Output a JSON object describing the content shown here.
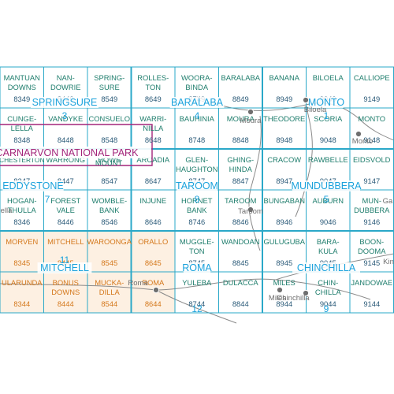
{
  "colors": {
    "grid_line": "#2aa8c8",
    "name_text": "#1e7d6c",
    "number_text": "#2a5a78",
    "region_text": "#1ba2dc",
    "orange_text": "#d4781c",
    "orange_fill": "#fdf0e2",
    "park_outline": "#a3257a",
    "park_text": "#a3257a",
    "road": "#8a8a8a",
    "town": "#6f6f6f"
  },
  "cells": [
    {
      "row": 0,
      "col": 0,
      "lines": [
        "MANTUAN",
        "DOWNS"
      ],
      "number": "8349"
    },
    {
      "row": 0,
      "col": 1,
      "lines": [
        "NAN-",
        "DOWRIE"
      ],
      "number": "8449"
    },
    {
      "row": 0,
      "col": 2,
      "lines": [
        "SPRING-",
        "SURE"
      ],
      "number": "8549"
    },
    {
      "row": 0,
      "col": 3,
      "lines": [
        "ROLLES-",
        "TON"
      ],
      "number": "8649"
    },
    {
      "row": 0,
      "col": 4,
      "lines": [
        "WOORA-",
        "BINDA"
      ],
      "number": "8749"
    },
    {
      "row": 0,
      "col": 5,
      "lines": [
        "BARALABA"
      ],
      "number": "8849"
    },
    {
      "row": 0,
      "col": 6,
      "lines": [
        "BANANA"
      ],
      "number": "8949"
    },
    {
      "row": 0,
      "col": 7,
      "lines": [
        "BILOELA"
      ],
      "number": "9049"
    },
    {
      "row": 0,
      "col": 8,
      "lines": [
        "CALLIOPE"
      ],
      "number": "9149"
    },
    {
      "row": 1,
      "col": 0,
      "lines": [
        "CUNGE-",
        "LELLA"
      ],
      "number": "8348"
    },
    {
      "row": 1,
      "col": 1,
      "lines": [
        "VANDYKE"
      ],
      "number": "8448"
    },
    {
      "row": 1,
      "col": 2,
      "lines": [
        "CONSUELO"
      ],
      "number": "8548"
    },
    {
      "row": 1,
      "col": 3,
      "lines": [
        "WARRI-",
        "NILLA"
      ],
      "number": "8648"
    },
    {
      "row": 1,
      "col": 4,
      "lines": [
        "BAUHINIA"
      ],
      "number": "8748"
    },
    {
      "row": 1,
      "col": 5,
      "lines": [
        "MOURA"
      ],
      "number": "8848"
    },
    {
      "row": 1,
      "col": 6,
      "lines": [
        "THEODORE"
      ],
      "number": "8948"
    },
    {
      "row": 1,
      "col": 7,
      "lines": [
        "SCORIA"
      ],
      "number": "9048"
    },
    {
      "row": 1,
      "col": 8,
      "lines": [
        "MONTO"
      ],
      "number": "9148"
    },
    {
      "row": 2,
      "col": 0,
      "lines": [
        "CHESTERTON"
      ],
      "number": "8347"
    },
    {
      "row": 2,
      "col": 1,
      "lines": [
        "WARRONG"
      ],
      "number": "8447"
    },
    {
      "row": 2,
      "col": 2,
      "lines": [
        "HOWE"
      ],
      "number": "8547"
    },
    {
      "row": 2,
      "col": 3,
      "lines": [
        "ARCADIA"
      ],
      "number": "8647"
    },
    {
      "row": 2,
      "col": 4,
      "lines": [
        "GLEN-",
        "HAUGHTON"
      ],
      "number": "8747"
    },
    {
      "row": 2,
      "col": 5,
      "lines": [
        "GHING-",
        "HINDA"
      ],
      "number": "8847"
    },
    {
      "row": 2,
      "col": 6,
      "lines": [
        "CRACOW"
      ],
      "number": "8947"
    },
    {
      "row": 2,
      "col": 7,
      "lines": [
        "RAWBELLE"
      ],
      "number": "9047"
    },
    {
      "row": 2,
      "col": 8,
      "lines": [
        "EIDSVOLD"
      ],
      "number": "9147"
    },
    {
      "row": 3,
      "col": 0,
      "lines": [
        "HOGAN-",
        "THULLA"
      ],
      "number": "8346"
    },
    {
      "row": 3,
      "col": 1,
      "lines": [
        "FOREST",
        "VALE"
      ],
      "number": "8446"
    },
    {
      "row": 3,
      "col": 2,
      "lines": [
        "WOMBLE-",
        "BANK"
      ],
      "number": "8546"
    },
    {
      "row": 3,
      "col": 3,
      "lines": [
        "INJUNE"
      ],
      "number": "8646"
    },
    {
      "row": 3,
      "col": 4,
      "lines": [
        "HORNET",
        "BANK"
      ],
      "number": "8746"
    },
    {
      "row": 3,
      "col": 5,
      "lines": [
        "TAROOM"
      ],
      "number": "8846"
    },
    {
      "row": 3,
      "col": 6,
      "lines": [
        "BUNGABAN"
      ],
      "number": "8946"
    },
    {
      "row": 3,
      "col": 7,
      "lines": [
        "AUBURN"
      ],
      "number": "9046"
    },
    {
      "row": 3,
      "col": 8,
      "lines": [
        "MUN-",
        "DUBBERA"
      ],
      "number": "9146"
    },
    {
      "row": 4,
      "col": 0,
      "lines": [
        "MORVEN"
      ],
      "number": "8345",
      "orange": true
    },
    {
      "row": 4,
      "col": 1,
      "lines": [
        "MITCHELL"
      ],
      "number": "8445",
      "orange": true
    },
    {
      "row": 4,
      "col": 2,
      "lines": [
        "WAROONGA"
      ],
      "number": "8545",
      "orange": true
    },
    {
      "row": 4,
      "col": 3,
      "lines": [
        "ORALLO"
      ],
      "number": "8645",
      "orange": true
    },
    {
      "row": 4,
      "col": 4,
      "lines": [
        "MUGGLE-",
        "TON"
      ],
      "number": "8745"
    },
    {
      "row": 4,
      "col": 5,
      "lines": [
        "WANDOAN"
      ],
      "number": "8845"
    },
    {
      "row": 4,
      "col": 6,
      "lines": [
        "GULUGUBA"
      ],
      "number": "8945"
    },
    {
      "row": 4,
      "col": 7,
      "lines": [
        "BARA-",
        "KULA"
      ],
      "number": "9045"
    },
    {
      "row": 4,
      "col": 8,
      "lines": [
        "BOON-",
        "DOOMA"
      ],
      "number": "9145"
    },
    {
      "row": 5,
      "col": 0,
      "lines": [
        "ULARUNDA"
      ],
      "number": "8344",
      "orange": true
    },
    {
      "row": 5,
      "col": 1,
      "lines": [
        "BONUS",
        "DOWNS"
      ],
      "number": "8444",
      "orange": true
    },
    {
      "row": 5,
      "col": 2,
      "lines": [
        "MUCKA-",
        "DILLA"
      ],
      "number": "8544",
      "orange": true
    },
    {
      "row": 5,
      "col": 3,
      "lines": [
        "ROMA"
      ],
      "number": "8644",
      "orange": true
    },
    {
      "row": 5,
      "col": 4,
      "lines": [
        "YULEBA"
      ],
      "number": "8744"
    },
    {
      "row": 5,
      "col": 5,
      "lines": [
        "DULACCA"
      ],
      "number": "8844"
    },
    {
      "row": 5,
      "col": 6,
      "lines": [
        "MILES"
      ],
      "number": "8944"
    },
    {
      "row": 5,
      "col": 7,
      "lines": [
        "CHIN-",
        "CHILLA"
      ],
      "number": "9044"
    },
    {
      "row": 5,
      "col": 8,
      "lines": [
        "JANDOWAE"
      ],
      "number": "9144"
    }
  ],
  "regions": [
    {
      "name": "SPRINGSURE",
      "number": "3"
    },
    {
      "name": "BARALABA",
      "number": "4"
    },
    {
      "name": "MONTO",
      "number": "1"
    },
    {
      "name": "EDDYSTONE",
      "number": "7"
    },
    {
      "name": "TAROOM",
      "number": "8"
    },
    {
      "name": "MUNDUBBERA",
      "number": "5"
    },
    {
      "name": "MITCHELL",
      "number": "11"
    },
    {
      "name": "ROMA",
      "number": "12"
    },
    {
      "name": "CHINCHILLA",
      "number": "9"
    }
  ],
  "park": {
    "label": "CARNARVON NATIONAL PARK",
    "mount": "MOUNT"
  },
  "towns": [
    {
      "name": "Moura"
    },
    {
      "name": "Biloela"
    },
    {
      "name": "Monto"
    },
    {
      "name": "Taroom"
    },
    {
      "name": "Roma"
    },
    {
      "name": "Miles"
    },
    {
      "name": "Chinchilla"
    },
    {
      "name": "Ga"
    },
    {
      "name": "Kin"
    },
    {
      "name": "ella"
    }
  ]
}
